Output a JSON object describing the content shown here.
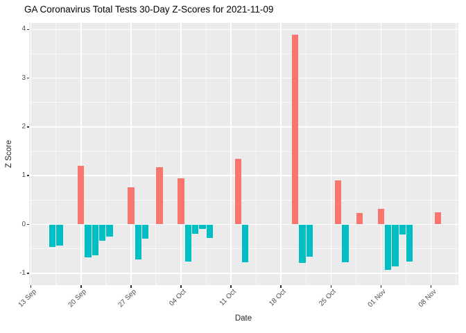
{
  "chart_data": {
    "type": "bar",
    "title": "GA Coronavirus Total Tests 30-Day Z-Scores for 2021-11-09",
    "xlabel": "Date",
    "ylabel": "Z Score",
    "start_date": "2021-09-13",
    "x_tick_labels": [
      "13 Sep",
      "20 Sep",
      "27 Sep",
      "04 Oct",
      "11 Oct",
      "18 Oct",
      "25 Oct",
      "01 Nov",
      "08 Nov"
    ],
    "x_tick_dates": [
      "2021-09-13",
      "2021-09-20",
      "2021-09-27",
      "2021-10-04",
      "2021-10-11",
      "2021-10-18",
      "2021-10-25",
      "2021-11-01",
      "2021-11-08"
    ],
    "y_ticks": [
      4,
      3,
      2,
      1,
      0,
      -1
    ],
    "y_minor_ticks": [
      3.5,
      2.5,
      1.5,
      0.5,
      -0.5
    ],
    "ylim": [
      -1.22,
      4.13
    ],
    "grid": true,
    "legend": "none",
    "colors": {
      "positive": "#F8766D",
      "negative": "#00BFC4",
      "panel_bg": "#EBEBEB",
      "gridline": "#FFFFFF",
      "tick_text": "#4D4D4D",
      "axis_title_text": "#262626",
      "title_text": "#000000",
      "tick_mark": "#333333"
    },
    "points": [
      {
        "date": "2021-09-16",
        "value": -0.46
      },
      {
        "date": "2021-09-17",
        "value": -0.44
      },
      {
        "date": "2021-09-20",
        "value": 1.2
      },
      {
        "date": "2021-09-21",
        "value": -0.67
      },
      {
        "date": "2021-09-22",
        "value": -0.64
      },
      {
        "date": "2021-09-23",
        "value": -0.33
      },
      {
        "date": "2021-09-24",
        "value": -0.25
      },
      {
        "date": "2021-09-27",
        "value": 0.76
      },
      {
        "date": "2021-09-28",
        "value": -0.72
      },
      {
        "date": "2021-09-29",
        "value": -0.29
      },
      {
        "date": "2021-10-01",
        "value": 1.18
      },
      {
        "date": "2021-10-04",
        "value": 0.94
      },
      {
        "date": "2021-10-05",
        "value": -0.76
      },
      {
        "date": "2021-10-06",
        "value": -0.19
      },
      {
        "date": "2021-10-07",
        "value": -0.09
      },
      {
        "date": "2021-10-08",
        "value": -0.28
      },
      {
        "date": "2021-10-12",
        "value": 1.35
      },
      {
        "date": "2021-10-13",
        "value": -0.78
      },
      {
        "date": "2021-10-20",
        "value": 3.89
      },
      {
        "date": "2021-10-21",
        "value": -0.79
      },
      {
        "date": "2021-10-22",
        "value": -0.66
      },
      {
        "date": "2021-10-26",
        "value": 0.91
      },
      {
        "date": "2021-10-27",
        "value": -0.77
      },
      {
        "date": "2021-10-29",
        "value": 0.23
      },
      {
        "date": "2021-11-01",
        "value": 0.32
      },
      {
        "date": "2021-11-02",
        "value": -0.93
      },
      {
        "date": "2021-11-03",
        "value": -0.86
      },
      {
        "date": "2021-11-04",
        "value": -0.21
      },
      {
        "date": "2021-11-05",
        "value": -0.76
      },
      {
        "date": "2021-11-09",
        "value": 0.25
      }
    ]
  }
}
